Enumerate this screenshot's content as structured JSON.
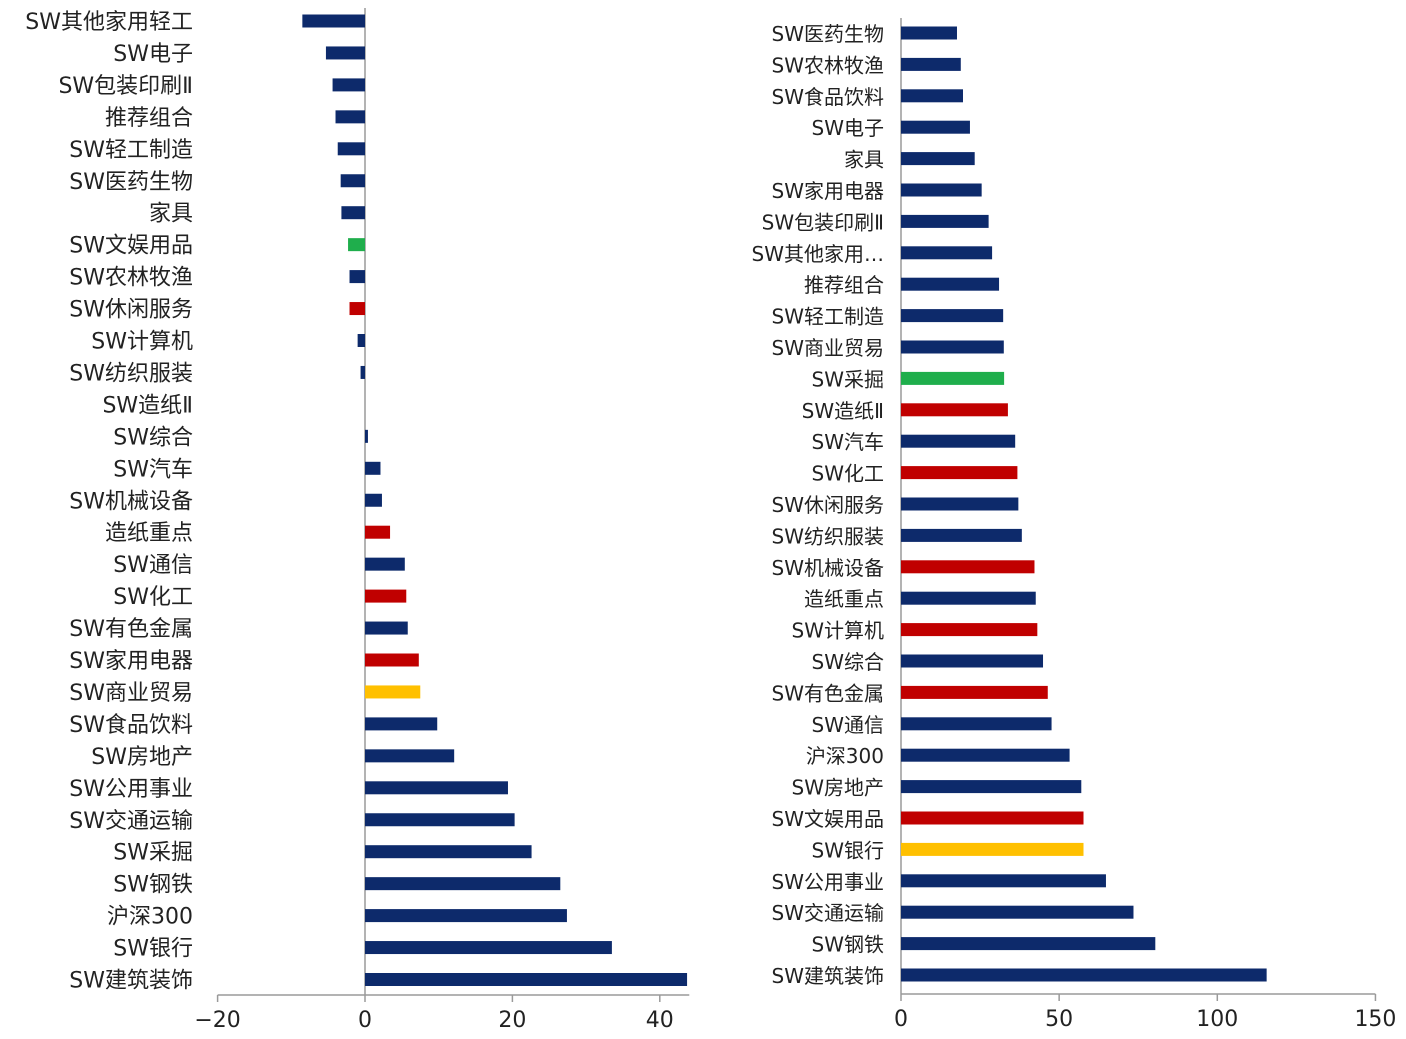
{
  "colors": {
    "navy": "#0d2a6b",
    "red": "#c00000",
    "green": "#1fae4c",
    "gold": "#ffc000"
  },
  "chart_data": [
    {
      "type": "bar",
      "orientation": "horizontal",
      "title": "",
      "xlabel": "",
      "ylabel": "",
      "xlim": [
        -20,
        44
      ],
      "xticks": [
        "−20",
        "0",
        "20",
        "40"
      ],
      "categories": [
        "SW其他家用轻工",
        "SW电子",
        "SW包装印刷Ⅱ",
        "推荐组合",
        "SW轻工制造",
        "SW医药生物",
        "家具",
        "SW文娱用品",
        "SW农林牧渔",
        "SW休闲服务",
        "SW计算机",
        "SW纺织服装",
        "SW造纸Ⅱ",
        "SW综合",
        "SW汽车",
        "SW机械设备",
        "造纸重点",
        "SW通信",
        "SW化工",
        "SW有色金属",
        "SW家用电器",
        "SW商业贸易",
        "SW食品饮料",
        "SW房地产",
        "SW公用事业",
        "SW交通运输",
        "SW采掘",
        "SW钢铁",
        "沪深300",
        "SW银行",
        "SW建筑装饰"
      ],
      "values": [
        -8.5,
        -5.3,
        -4.4,
        -4.0,
        -3.7,
        -3.3,
        -3.2,
        -2.3,
        -2.1,
        -2.1,
        -1.0,
        -0.6,
        0.0,
        0.4,
        2.1,
        2.3,
        3.4,
        5.4,
        5.6,
        5.8,
        7.3,
        7.5,
        9.8,
        12.1,
        19.4,
        20.3,
        22.6,
        26.5,
        27.4,
        33.5,
        43.7
      ],
      "bar_colors": [
        "navy",
        "navy",
        "navy",
        "navy",
        "navy",
        "navy",
        "navy",
        "green",
        "navy",
        "red",
        "navy",
        "navy",
        "navy",
        "navy",
        "navy",
        "navy",
        "red",
        "navy",
        "red",
        "navy",
        "red",
        "gold",
        "navy",
        "navy",
        "navy",
        "navy",
        "navy",
        "navy",
        "navy",
        "navy",
        "navy"
      ]
    },
    {
      "type": "bar",
      "orientation": "horizontal",
      "title": "",
      "xlabel": "",
      "ylabel": "",
      "xlim": [
        0,
        150
      ],
      "xticks": [
        "0",
        "50",
        "100",
        "150"
      ],
      "categories": [
        "SW医药生物",
        "SW农林牧渔",
        "SW食品饮料",
        "SW电子",
        "家具",
        "SW家用电器",
        "SW包装印刷Ⅱ",
        "SW其他家用…",
        "推荐组合",
        "SW轻工制造",
        "SW商业贸易",
        "SW采掘",
        "SW造纸Ⅱ",
        "SW汽车",
        "SW化工",
        "SW休闲服务",
        "SW纺织服装",
        "SW机械设备",
        "造纸重点",
        "SW计算机",
        "SW综合",
        "SW有色金属",
        "SW通信",
        "沪深300",
        "SW房地产",
        "SW文娱用品",
        "SW银行",
        "SW公用事业",
        "SW交通运输",
        "SW钢铁",
        "SW建筑装饰"
      ],
      "values": [
        17.7,
        18.9,
        19.6,
        21.8,
        23.3,
        25.5,
        27.7,
        28.8,
        31.0,
        32.3,
        32.5,
        32.6,
        33.8,
        36.1,
        36.8,
        37.1,
        38.2,
        42.2,
        42.6,
        43.1,
        44.9,
        46.4,
        47.6,
        53.3,
        57.0,
        57.7,
        57.7,
        64.8,
        73.5,
        80.4,
        115.6
      ],
      "bar_colors": [
        "navy",
        "navy",
        "navy",
        "navy",
        "navy",
        "navy",
        "navy",
        "navy",
        "navy",
        "navy",
        "navy",
        "green",
        "red",
        "navy",
        "red",
        "navy",
        "navy",
        "red",
        "navy",
        "red",
        "navy",
        "red",
        "navy",
        "navy",
        "navy",
        "red",
        "gold",
        "navy",
        "navy",
        "navy",
        "navy"
      ]
    }
  ]
}
